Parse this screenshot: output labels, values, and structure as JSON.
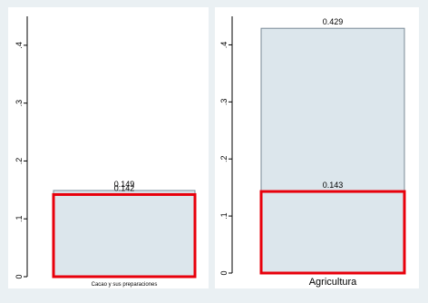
{
  "chart_data": [
    {
      "type": "bar",
      "categories": [
        "Cacao y sus preparaciones"
      ],
      "series": [
        {
          "values": [
            0.149
          ]
        },
        {
          "values": [
            0.142
          ]
        }
      ],
      "data_labels": [
        "0.149",
        "0.142"
      ],
      "ylim": [
        0,
        0.45
      ],
      "yticks": [
        0,
        0.1,
        0.2,
        0.3,
        0.4
      ],
      "ytick_labels": [
        "0",
        ".1",
        ".2",
        ".3",
        ".4"
      ],
      "grid": false,
      "highlight_color": "#e8000b",
      "bar_fill": "#dce6ec",
      "bar_stroke": "#7a8a96"
    },
    {
      "type": "bar",
      "categories": [
        "Agricultura"
      ],
      "series": [
        {
          "values": [
            0.429
          ]
        },
        {
          "values": [
            0.143
          ]
        }
      ],
      "data_labels": [
        "0.429",
        "0.143"
      ],
      "ylim": [
        0,
        0.45
      ],
      "yticks": [
        0,
        0.1,
        0.2,
        0.3,
        0.4
      ],
      "ytick_labels": [
        "0",
        ".1",
        ".2",
        ".3",
        ".4"
      ],
      "grid": false,
      "highlight_color": "#e8000b",
      "bar_fill": "#dce6ec",
      "bar_stroke": "#7a8a96"
    }
  ]
}
